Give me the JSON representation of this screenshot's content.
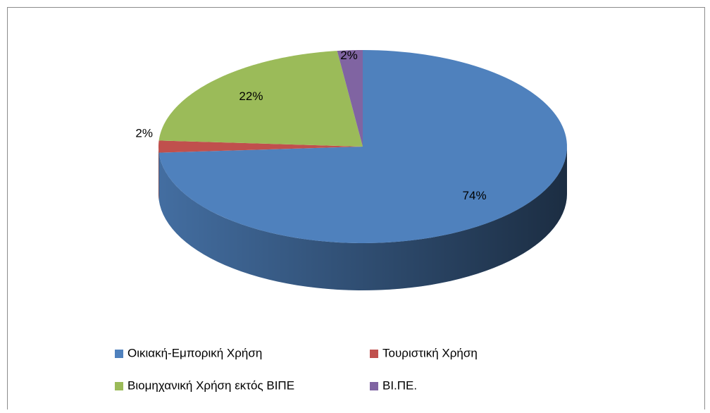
{
  "chart_data": {
    "type": "pie",
    "categories": [
      "Οικιακή-Εμπορική Χρήση",
      "Τουριστική Χρήση",
      "Βιομηχανική Χρήση εκτός ΒΙΠΕ",
      "ΒΙ.ΠΕ."
    ],
    "values": [
      74,
      2,
      22,
      2
    ],
    "value_labels": [
      "74%",
      "2%",
      "22%",
      "2%"
    ],
    "colors": [
      "#4f81bd",
      "#c0504d",
      "#9bbb59",
      "#8064a2"
    ],
    "legend": "bottom"
  }
}
